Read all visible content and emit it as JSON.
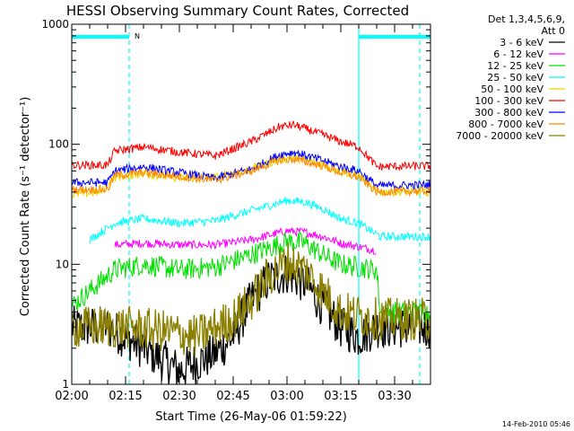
{
  "chart_data": {
    "type": "line",
    "title": "HESSI Observing Summary Count Rates, Corrected",
    "xlabel": "Start Time (26-May-06 01:59:22)",
    "ylabel": "Corrected Count Rate (s⁻¹ detector⁻¹)",
    "ylog": true,
    "ylim": [
      1,
      1000
    ],
    "xlim": [
      0,
      100
    ],
    "y_ticks": [
      {
        "v": 1,
        "label": "1"
      },
      {
        "v": 10,
        "label": "10"
      },
      {
        "v": 100,
        "label": "100"
      },
      {
        "v": 1000,
        "label": "1000"
      }
    ],
    "x_ticks": [
      {
        "v": 0,
        "label": "02:00"
      },
      {
        "v": 15,
        "label": "02:15"
      },
      {
        "v": 30,
        "label": "02:30"
      },
      {
        "v": 45,
        "label": "02:45"
      },
      {
        "v": 60,
        "label": "03:00"
      },
      {
        "v": 75,
        "label": "03:15"
      },
      {
        "v": 90,
        "label": "03:30"
      }
    ],
    "legend_header": [
      "Det 1,3,4,5,6,9,",
      "Att 0"
    ],
    "legend_position": "right",
    "footer_timestamp": "14-Feb-2010 05:46",
    "night_marker_label": "N",
    "night_bar_segments": [
      [
        0,
        16
      ],
      [
        80,
        100
      ]
    ],
    "vline_solid": [
      0,
      80
    ],
    "vline_dashed": [
      16,
      97
    ],
    "series": [
      {
        "name": "3 - 6 keV",
        "color": "#000000",
        "points": [
          [
            0,
            3
          ],
          [
            10,
            3
          ],
          [
            20,
            2
          ],
          [
            30,
            1.3
          ],
          [
            40,
            1.8
          ],
          [
            45,
            2.5
          ],
          [
            50,
            5
          ],
          [
            55,
            7.5
          ],
          [
            60,
            8.5
          ],
          [
            65,
            7
          ],
          [
            70,
            4.5
          ],
          [
            75,
            3
          ],
          [
            80,
            2.5
          ],
          [
            85,
            3
          ],
          [
            90,
            3
          ],
          [
            100,
            3
          ]
        ]
      },
      {
        "name": "6 - 12 keV",
        "color": "#ff00ff",
        "points": [
          [
            12,
            14.5
          ],
          [
            20,
            15
          ],
          [
            30,
            14.5
          ],
          [
            40,
            14.5
          ],
          [
            50,
            16
          ],
          [
            60,
            19
          ],
          [
            65,
            18.5
          ],
          [
            70,
            17
          ],
          [
            75,
            15
          ],
          [
            80,
            14
          ],
          [
            85,
            13
          ]
        ]
      },
      {
        "name": "12 - 25 keV",
        "color": "#00e000",
        "points": [
          [
            0,
            4.5
          ],
          [
            12,
            9
          ],
          [
            20,
            10
          ],
          [
            30,
            9
          ],
          [
            40,
            9.5
          ],
          [
            50,
            12
          ],
          [
            60,
            15.5
          ],
          [
            65,
            15
          ],
          [
            70,
            12
          ],
          [
            75,
            10
          ],
          [
            85,
            9
          ],
          [
            86,
            4
          ],
          [
            100,
            4
          ]
        ]
      },
      {
        "name": "25 - 50 keV",
        "color": "#00ffff",
        "points": [
          [
            5,
            16
          ],
          [
            12,
            22
          ],
          [
            20,
            24
          ],
          [
            30,
            22
          ],
          [
            40,
            23
          ],
          [
            50,
            28
          ],
          [
            60,
            34
          ],
          [
            65,
            33
          ],
          [
            70,
            29
          ],
          [
            75,
            24
          ],
          [
            80,
            22
          ],
          [
            86,
            17
          ],
          [
            100,
            17
          ]
        ]
      },
      {
        "name": "50 - 100 keV",
        "color": "#e8d800",
        "points": [
          [
            0,
            38
          ],
          [
            8,
            40
          ],
          [
            12,
            53
          ],
          [
            20,
            57
          ],
          [
            30,
            52
          ],
          [
            40,
            53
          ],
          [
            50,
            62
          ],
          [
            58,
            75
          ],
          [
            62,
            77
          ],
          [
            70,
            68
          ],
          [
            75,
            60
          ],
          [
            80,
            55
          ],
          [
            85,
            40
          ],
          [
            100,
            40
          ]
        ]
      },
      {
        "name": "100 - 300 keV",
        "color": "#ff0000",
        "points": [
          [
            0,
            67
          ],
          [
            10,
            67
          ],
          [
            12,
            88
          ],
          [
            20,
            95
          ],
          [
            30,
            86
          ],
          [
            40,
            80
          ],
          [
            50,
            105
          ],
          [
            58,
            140
          ],
          [
            62,
            145
          ],
          [
            70,
            120
          ],
          [
            75,
            105
          ],
          [
            80,
            95
          ],
          [
            85,
            65
          ],
          [
            100,
            66
          ]
        ]
      },
      {
        "name": "300 - 800 keV",
        "color": "#0000ff",
        "points": [
          [
            0,
            48
          ],
          [
            10,
            48
          ],
          [
            12,
            60
          ],
          [
            20,
            65
          ],
          [
            30,
            58
          ],
          [
            40,
            52
          ],
          [
            50,
            62
          ],
          [
            58,
            82
          ],
          [
            62,
            86
          ],
          [
            70,
            73
          ],
          [
            75,
            65
          ],
          [
            80,
            60
          ],
          [
            85,
            45
          ],
          [
            100,
            46
          ]
        ]
      },
      {
        "name": "800 - 7000 keV",
        "color": "#ff8800",
        "points": [
          [
            0,
            42
          ],
          [
            10,
            42
          ],
          [
            12,
            55
          ],
          [
            20,
            58
          ],
          [
            30,
            54
          ],
          [
            40,
            50
          ],
          [
            50,
            60
          ],
          [
            58,
            74
          ],
          [
            62,
            75
          ],
          [
            70,
            66
          ],
          [
            75,
            58
          ],
          [
            80,
            53
          ],
          [
            85,
            40
          ],
          [
            100,
            41
          ]
        ]
      },
      {
        "name": "7000 - 20000 keV",
        "color": "#8b8000",
        "points": [
          [
            0,
            3
          ],
          [
            15,
            3
          ],
          [
            25,
            2.8
          ],
          [
            35,
            2.5
          ],
          [
            45,
            3.5
          ],
          [
            50,
            5
          ],
          [
            55,
            8
          ],
          [
            60,
            10.5
          ],
          [
            65,
            9
          ],
          [
            70,
            6
          ],
          [
            75,
            4
          ],
          [
            85,
            3.5
          ],
          [
            100,
            3.5
          ]
        ]
      }
    ]
  }
}
